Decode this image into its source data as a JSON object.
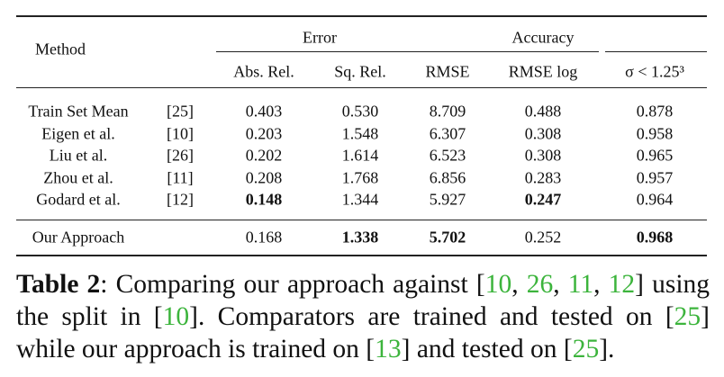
{
  "table": {
    "header": {
      "method": "Method",
      "groups": [
        "Error",
        "Accuracy"
      ],
      "columns": [
        "Abs. Rel.",
        "Sq. Rel.",
        "RMSE",
        "RMSE log",
        "σ < 1.25³"
      ]
    },
    "rows": [
      {
        "method": "Train Set Mean",
        "ref": "[25]",
        "values": [
          "0.403",
          "0.530",
          "8.709",
          "0.488",
          "0.878"
        ],
        "bold": [
          false,
          false,
          false,
          false,
          false
        ]
      },
      {
        "method": "Eigen et al.",
        "ref": "[10]",
        "values": [
          "0.203",
          "1.548",
          "6.307",
          "0.308",
          "0.958"
        ],
        "bold": [
          false,
          false,
          false,
          false,
          false
        ]
      },
      {
        "method": "Liu et al.",
        "ref": "[26]",
        "values": [
          "0.202",
          "1.614",
          "6.523",
          "0.308",
          "0.965"
        ],
        "bold": [
          false,
          false,
          false,
          false,
          false
        ]
      },
      {
        "method": "Zhou et al.",
        "ref": "[11]",
        "values": [
          "0.208",
          "1.768",
          "6.856",
          "0.283",
          "0.957"
        ],
        "bold": [
          false,
          false,
          false,
          false,
          false
        ]
      },
      {
        "method": "Godard et al.",
        "ref": "[12]",
        "values": [
          "0.148",
          "1.344",
          "5.927",
          "0.247",
          "0.964"
        ],
        "bold": [
          true,
          false,
          false,
          true,
          false
        ]
      }
    ],
    "final_row": {
      "method": "Our Approach",
      "values": [
        "0.168",
        "1.338",
        "5.702",
        "0.252",
        "0.968"
      ],
      "bold": [
        false,
        true,
        true,
        false,
        true
      ]
    }
  },
  "caption": {
    "segments": [
      {
        "text": "Table 2",
        "style": "bold"
      },
      {
        "text": ":  Comparing our approach against ["
      },
      {
        "text": "10",
        "style": "cite"
      },
      {
        "text": ", "
      },
      {
        "text": "26",
        "style": "cite"
      },
      {
        "text": ", "
      },
      {
        "text": "11",
        "style": "cite"
      },
      {
        "text": ", "
      },
      {
        "text": "12",
        "style": "cite"
      },
      {
        "text": "] using the split in ["
      },
      {
        "text": "10",
        "style": "cite"
      },
      {
        "text": "]. Comparators are trained and tested on ["
      },
      {
        "text": "25",
        "style": "cite"
      },
      {
        "text": "] while our approach is trained on ["
      },
      {
        "text": "13",
        "style": "cite"
      },
      {
        "text": "] and tested on ["
      },
      {
        "text": "25",
        "style": "cite"
      },
      {
        "text": "]."
      }
    ]
  }
}
